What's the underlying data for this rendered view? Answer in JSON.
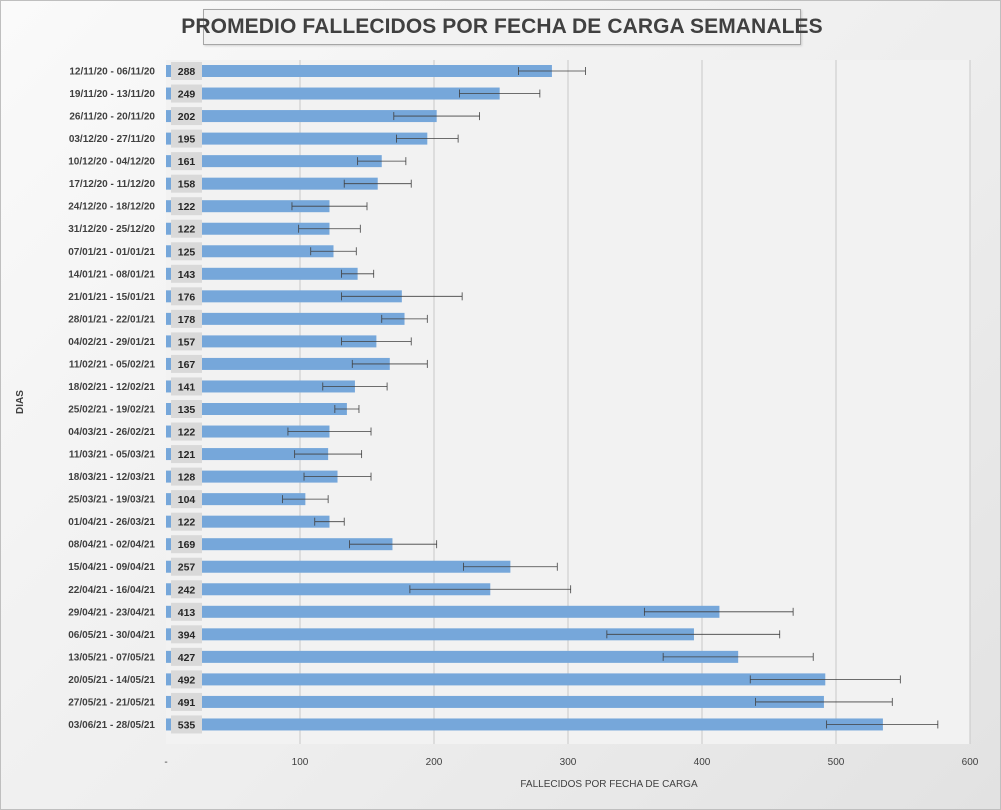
{
  "chart_data": {
    "type": "bar",
    "orientation": "horizontal",
    "title": "PROMEDIO FALLECIDOS POR FECHA DE CARGA SEMANALES",
    "xlabel": "FALLECIDOS POR FECHA DE CARGA",
    "ylabel": "DIAS",
    "xlim": [
      0,
      600
    ],
    "xticks": [
      0,
      100,
      200,
      300,
      400,
      500,
      600
    ],
    "xtick_labels": [
      "-",
      "100",
      "200",
      "300",
      "400",
      "500",
      "600"
    ],
    "grid": "vertical",
    "categories": [
      "12/11/20 - 06/11/20",
      "19/11/20 - 13/11/20",
      "26/11/20 - 20/11/20",
      "03/12/20 - 27/11/20",
      "10/12/20 - 04/12/20",
      "17/12/20 - 11/12/20",
      "24/12/20 - 18/12/20",
      "31/12/20 - 25/12/20",
      "07/01/21 - 01/01/21",
      "14/01/21 - 08/01/21",
      "21/01/21 - 15/01/21",
      "28/01/21 - 22/01/21",
      "04/02/21 - 29/01/21",
      "11/02/21 - 05/02/21",
      "18/02/21 - 12/02/21",
      "25/02/21 - 19/02/21",
      "04/03/21 - 26/02/21",
      "11/03/21 - 05/03/21",
      "18/03/21 - 12/03/21",
      "25/03/21 - 19/03/21",
      "01/04/21 - 26/03/21",
      "08/04/21 - 02/04/21",
      "15/04/21 - 09/04/21",
      "22/04/21 - 16/04/21",
      "29/04/21 - 23/04/21",
      "06/05/21 - 30/04/21",
      "13/05/21 - 07/05/21",
      "20/05/21 - 14/05/21",
      "27/05/21 - 21/05/21",
      "03/06/21 - 28/05/21"
    ],
    "series": [
      {
        "color": "#76a7da",
        "values": [
          288,
          249,
          202,
          195,
          161,
          158,
          122,
          122,
          125,
          143,
          176,
          178,
          157,
          167,
          141,
          135,
          122,
          121,
          128,
          104,
          122,
          169,
          257,
          242,
          413,
          394,
          427,
          492,
          491,
          535
        ],
        "error_low": [
          263,
          219,
          170,
          172,
          143,
          133,
          94,
          99,
          108,
          131,
          131,
          161,
          131,
          139,
          117,
          126,
          91,
          96,
          103,
          87,
          111,
          137,
          222,
          182,
          357,
          329,
          371,
          436,
          440,
          493
        ],
        "error_high": [
          313,
          279,
          234,
          218,
          179,
          183,
          150,
          145,
          142,
          155,
          221,
          195,
          183,
          195,
          165,
          144,
          153,
          146,
          153,
          121,
          133,
          202,
          292,
          302,
          468,
          458,
          483,
          548,
          542,
          576
        ]
      }
    ],
    "data_labels": true
  }
}
